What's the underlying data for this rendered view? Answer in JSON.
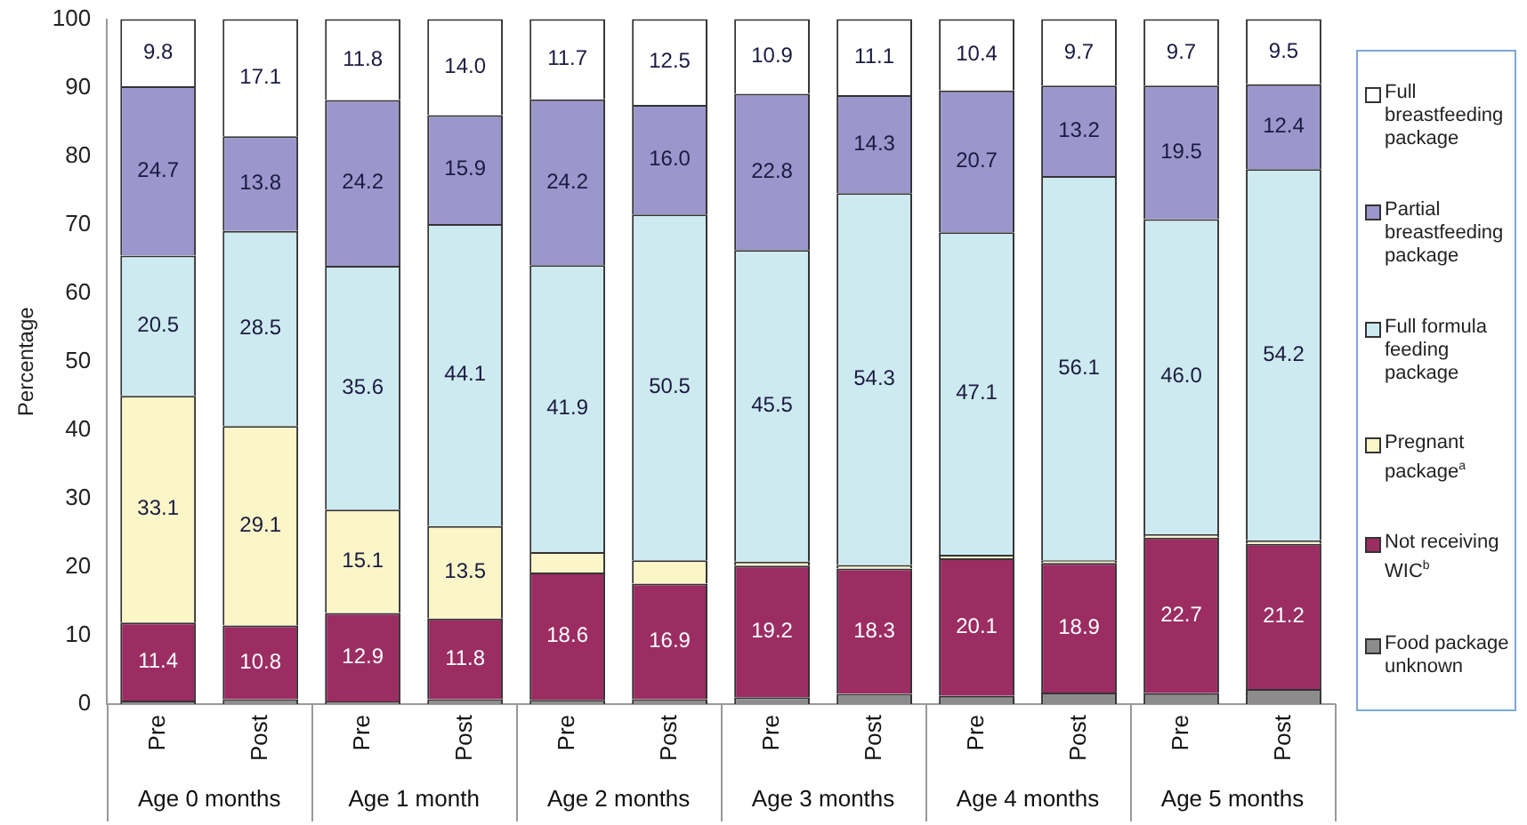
{
  "chart_data": {
    "type": "bar",
    "stacked": true,
    "ylabel": "Percentage",
    "ylim": [
      0,
      100
    ],
    "yticks": [
      0,
      10,
      20,
      30,
      40,
      50,
      60,
      70,
      80,
      90,
      100
    ],
    "grid": false,
    "legend": "right",
    "categories": [
      "Pre",
      "Post",
      "Pre",
      "Post",
      "Pre",
      "Post",
      "Pre",
      "Post",
      "Pre",
      "Post",
      "Pre",
      "Post"
    ],
    "annotations": [
      "Age 0 months",
      "Age 1 month",
      "Age 2 months",
      "Age 3 months",
      "Age 4 months",
      "Age 5 months"
    ],
    "series": [
      {
        "name": "Food package unknown",
        "color": "#8c8c8c",
        "values": [
          0.5,
          0.7,
          0.4,
          0.7,
          0.6,
          0.7,
          1.0,
          1.5,
          1.2,
          1.7,
          1.6,
          2.2
        ],
        "value_labels": [
          null,
          null,
          null,
          null,
          null,
          null,
          null,
          null,
          null,
          null,
          null,
          null
        ]
      },
      {
        "name": "Not receiving WIC$^{b}$",
        "color": "#9b2d62",
        "values": [
          11.4,
          10.8,
          12.9,
          11.8,
          18.6,
          16.9,
          19.2,
          18.3,
          20.1,
          18.9,
          22.7,
          21.2
        ],
        "value_labels": [
          "11.4",
          "10.8",
          "12.9",
          "11.8",
          "18.6",
          "16.9",
          "19.2",
          "18.3",
          "20.1",
          "18.9",
          "22.7",
          "21.2"
        ]
      },
      {
        "name": "Pregnant package$^{a}$",
        "color": "#faf6c8",
        "values": [
          33.1,
          29.1,
          15.1,
          13.5,
          3.0,
          3.4,
          0.6,
          0.5,
          0.5,
          0.4,
          0.5,
          0.5
        ],
        "value_labels": [
          "33.1",
          "29.1",
          "15.1",
          "13.5",
          null,
          null,
          null,
          null,
          null,
          null,
          null,
          null
        ]
      },
      {
        "name": "Full formula feeding package",
        "color": "#cdeaf0",
        "values": [
          20.5,
          28.5,
          35.6,
          44.1,
          41.9,
          50.5,
          45.5,
          54.3,
          47.1,
          56.1,
          46.0,
          54.2
        ],
        "value_labels": [
          "20.5",
          "28.5",
          "35.6",
          "44.1",
          "41.9",
          "50.5",
          "45.5",
          "54.3",
          "47.1",
          "56.1",
          "46.0",
          "54.2"
        ]
      },
      {
        "name": "Partial breastfeeding package",
        "color": "#9b97cc",
        "values": [
          24.7,
          13.8,
          24.2,
          15.9,
          24.2,
          16.0,
          22.8,
          14.3,
          20.7,
          13.2,
          19.5,
          12.4
        ],
        "value_labels": [
          "24.7",
          "13.8",
          "24.2",
          "15.9",
          "24.2",
          "16.0",
          "22.8",
          "14.3",
          "20.7",
          "13.2",
          "19.5",
          "12.4"
        ]
      },
      {
        "name": "Full breastfeeding package",
        "color": "#ffffff",
        "values": [
          9.8,
          17.1,
          11.8,
          14.0,
          11.7,
          12.5,
          10.9,
          11.1,
          10.4,
          9.7,
          9.7,
          9.5
        ],
        "value_labels": [
          "9.8",
          "17.1",
          "11.8",
          "14.0",
          "11.7",
          "12.5",
          "10.9",
          "11.1",
          "10.4",
          "9.7",
          "9.7",
          "9.5"
        ]
      }
    ]
  }
}
